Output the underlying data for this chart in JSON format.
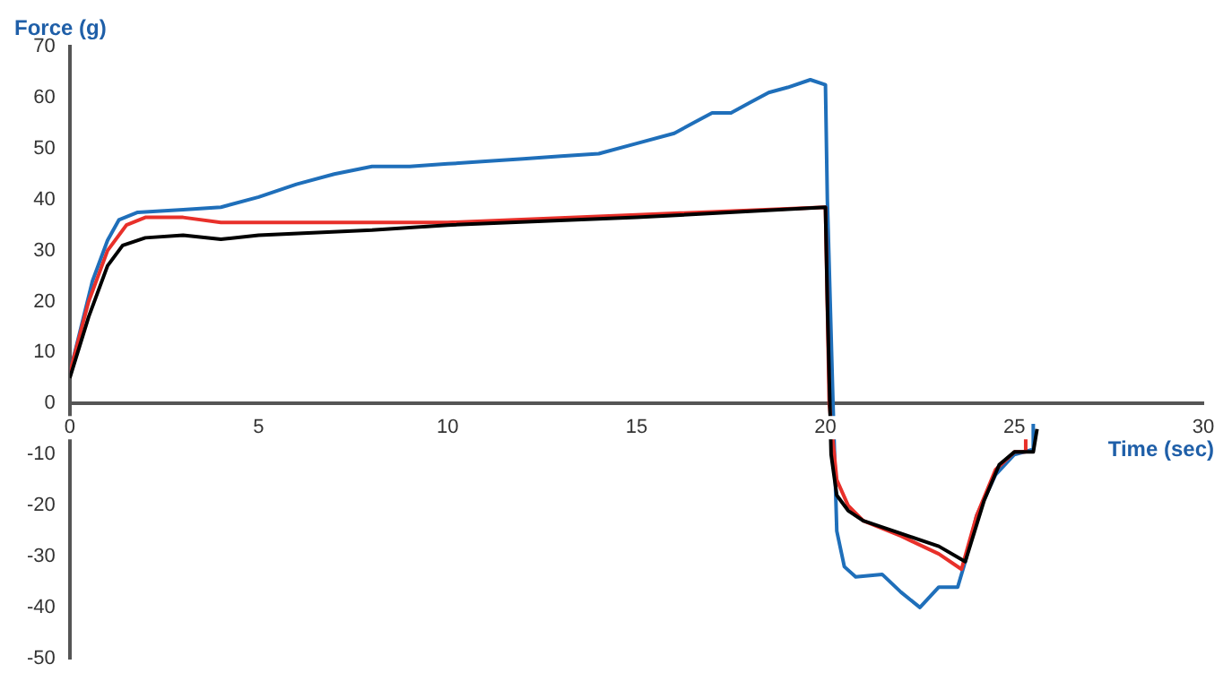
{
  "chart_data": {
    "type": "line",
    "xlabel": "Time (sec)",
    "ylabel": "Force (g)",
    "xlim": [
      0,
      30
    ],
    "xticks": [
      0,
      5,
      10,
      15,
      20,
      25,
      30
    ],
    "ylim": [
      -50,
      70
    ],
    "yticks": [
      -50,
      -40,
      -30,
      -20,
      -10,
      0,
      10,
      20,
      30,
      40,
      50,
      60,
      70
    ],
    "grid": false,
    "legend": false,
    "marker": "none",
    "line_style": "solid",
    "series": [
      {
        "color": "#1f6fba",
        "x": [
          0,
          0.3,
          0.6,
          1.0,
          1.3,
          1.8,
          3,
          4,
          5,
          6,
          7,
          8,
          9,
          10,
          11,
          12,
          13,
          14,
          15,
          16,
          16.5,
          17,
          17.5,
          18,
          18.5,
          19,
          19.6,
          20,
          20.05,
          20.2,
          20.3,
          20.5,
          20.8,
          21.5,
          22,
          22.5,
          23,
          23.5,
          23.7,
          24,
          24.5,
          25,
          25.5,
          25.5
        ],
        "values": [
          6,
          15,
          24,
          32,
          36,
          37.5,
          38,
          38.5,
          40.5,
          43,
          45,
          46.5,
          46.5,
          47,
          47.5,
          48,
          48.5,
          49,
          51,
          53,
          55,
          57,
          57,
          59,
          61,
          62,
          63.5,
          62.5,
          40,
          0,
          -25,
          -32,
          -34,
          -33.5,
          -37,
          -40,
          -36,
          -36,
          -31,
          -22,
          -14,
          -10,
          -9,
          -4
        ]
      },
      {
        "color": "#e8302a",
        "x": [
          0,
          0.5,
          1,
          1.5,
          2,
          3,
          4,
          5,
          10,
          15,
          20,
          20.1,
          20.3,
          20.6,
          21,
          22,
          23,
          23.6,
          24,
          24.5,
          25,
          25.3,
          25.3
        ],
        "values": [
          6,
          20,
          30,
          35,
          36.5,
          36.5,
          35.5,
          35.5,
          35.5,
          37,
          38.5,
          0,
          -15,
          -20,
          -23,
          -26,
          -29.5,
          -32.5,
          -22,
          -13,
          -9.5,
          -9.5,
          -6
        ]
      },
      {
        "color": "#000000",
        "x": [
          0,
          0.5,
          1,
          1.4,
          2,
          3,
          4,
          5,
          8,
          10,
          15,
          20,
          20.05,
          20.15,
          20.3,
          20.6,
          21,
          22,
          23,
          23.7,
          24.2,
          24.6,
          25,
          25.5,
          25.6
        ],
        "values": [
          5,
          17,
          27,
          31,
          32.5,
          33,
          32.2,
          33,
          34,
          35,
          36.5,
          38.5,
          20,
          -10,
          -18,
          -21,
          -23,
          -25.5,
          -28,
          -31,
          -19,
          -12,
          -9.5,
          -9.5,
          -5
        ]
      }
    ]
  }
}
